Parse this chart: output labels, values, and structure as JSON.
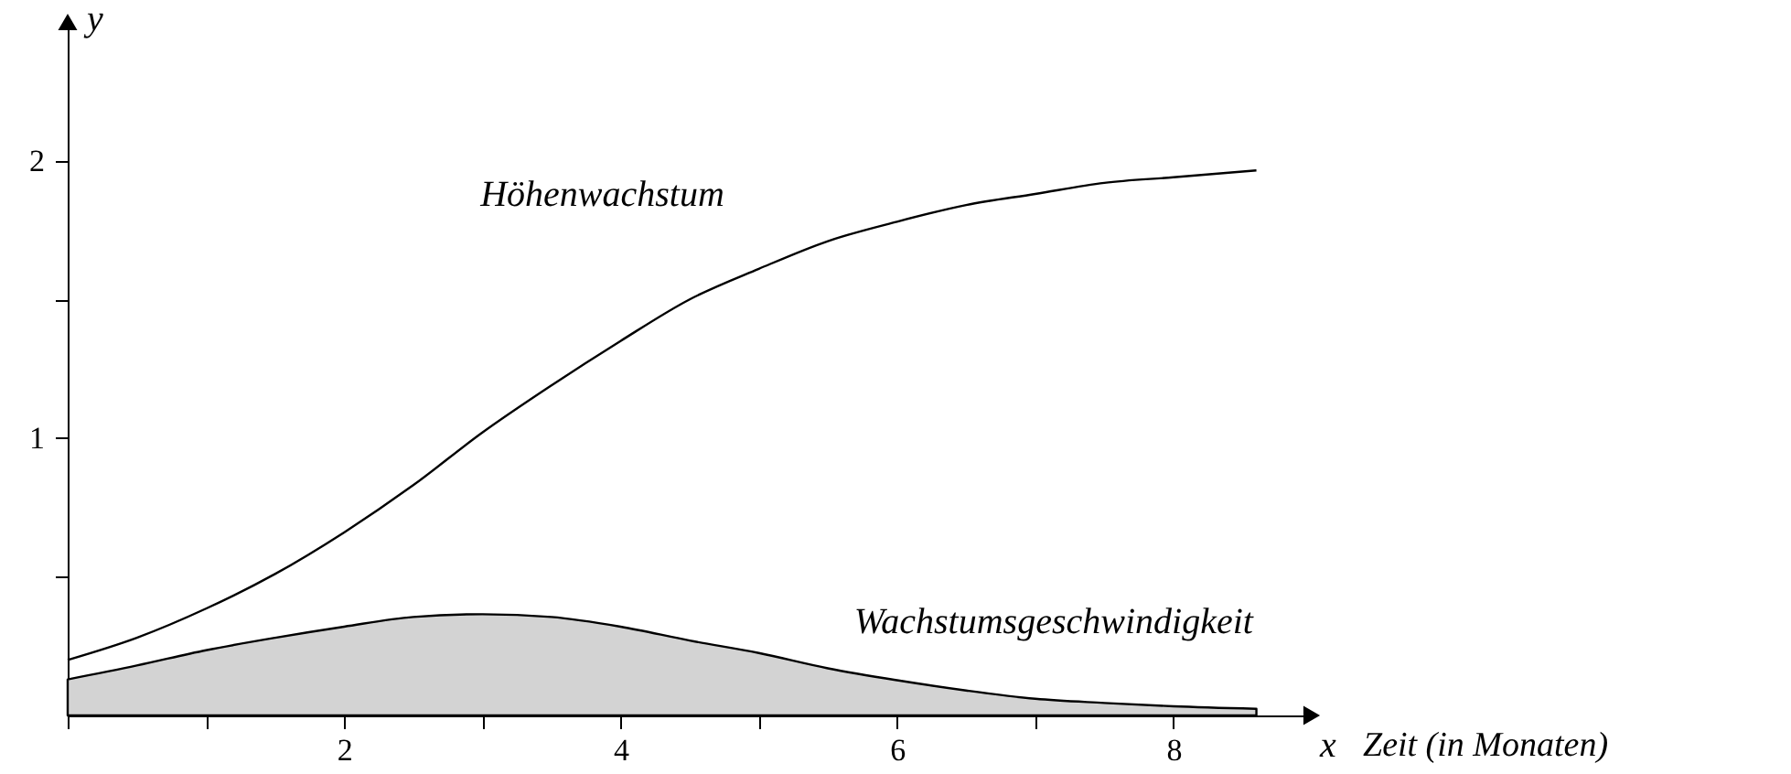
{
  "chart_data": {
    "type": "line",
    "xlabel": "x",
    "ylabel": "y",
    "annotations": [
      "Zeit (in Monaten)"
    ],
    "xlim": [
      0,
      9.0
    ],
    "ylim": [
      0,
      2.5
    ],
    "xticks": [
      {
        "value": 0,
        "label": null
      },
      {
        "value": 1,
        "label": null
      },
      2,
      {
        "value": 3,
        "label": null
      },
      4,
      {
        "value": 5,
        "label": null
      },
      6,
      {
        "value": 7,
        "label": null
      },
      8
    ],
    "yticks": [
      {
        "value": 0.5,
        "label": null
      },
      1,
      {
        "value": 1.5,
        "label": null
      },
      2
    ],
    "grid": false,
    "series": [
      {
        "name": "Höhenwachstum",
        "color": "#000000",
        "x": [
          0,
          0.5,
          1,
          1.5,
          2,
          2.5,
          3,
          3.5,
          4,
          4.5,
          5,
          5.5,
          6,
          6.5,
          7,
          7.5,
          8,
          8.6
        ],
        "values": [
          0.2,
          0.28,
          0.385,
          0.51,
          0.66,
          0.83,
          1.02,
          1.19,
          1.35,
          1.5,
          1.61,
          1.71,
          1.78,
          1.84,
          1.88,
          1.92,
          1.94,
          1.965
        ]
      },
      {
        "name": "Wachstumsgeschwindigkeit",
        "type": "area",
        "color": "#d3d3d3",
        "x": [
          0,
          0.5,
          1,
          1.5,
          2,
          2.5,
          3,
          3.5,
          4,
          4.5,
          5,
          5.5,
          6,
          6.5,
          7,
          7.5,
          8,
          8.6
        ],
        "values": [
          0.13,
          0.18,
          0.235,
          0.28,
          0.32,
          0.355,
          0.365,
          0.355,
          0.32,
          0.27,
          0.225,
          0.17,
          0.127,
          0.09,
          0.06,
          0.045,
          0.033,
          0.024
        ]
      }
    ]
  }
}
